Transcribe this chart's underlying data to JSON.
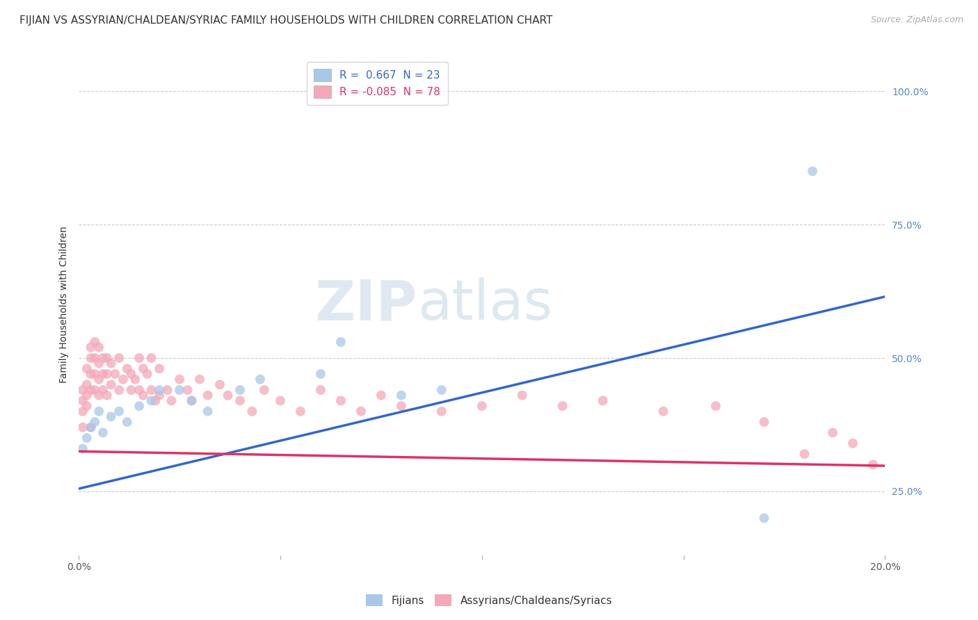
{
  "title": "FIJIAN VS ASSYRIAN/CHALDEAN/SYRIAC FAMILY HOUSEHOLDS WITH CHILDREN CORRELATION CHART",
  "source": "Source: ZipAtlas.com",
  "ylabel": "Family Households with Children",
  "y_ticks_right": [
    1.0,
    0.75,
    0.5,
    0.25
  ],
  "y_tick_labels_right": [
    "100.0%",
    "75.0%",
    "50.0%",
    "25.0%"
  ],
  "xlim": [
    0.0,
    0.2
  ],
  "ylim": [
    0.13,
    1.07
  ],
  "fijian_R": 0.667,
  "fijian_N": 23,
  "assyrian_R": -0.085,
  "assyrian_N": 78,
  "fijian_color": "#a8c8e8",
  "assyrian_color": "#f4a8b8",
  "fijian_line_color": "#3366cc",
  "assyrian_line_color": "#dd3366",
  "legend_label_fijian": "Fijians",
  "legend_label_assyrian": "Assyrians/Chaldeans/Syriacs",
  "watermark_zip": "ZIP",
  "watermark_atlas": "atlas",
  "background_color": "#ffffff",
  "grid_color": "#cccccc",
  "fijian_x": [
    0.001,
    0.002,
    0.003,
    0.004,
    0.005,
    0.006,
    0.008,
    0.01,
    0.012,
    0.015,
    0.018,
    0.02,
    0.025,
    0.028,
    0.032,
    0.04,
    0.045,
    0.06,
    0.065,
    0.08,
    0.09,
    0.17,
    0.182
  ],
  "fijian_y": [
    0.33,
    0.35,
    0.37,
    0.38,
    0.4,
    0.36,
    0.39,
    0.4,
    0.38,
    0.41,
    0.42,
    0.44,
    0.44,
    0.42,
    0.4,
    0.44,
    0.46,
    0.47,
    0.53,
    0.43,
    0.44,
    0.2,
    0.85
  ],
  "assyrian_x": [
    0.001,
    0.001,
    0.001,
    0.001,
    0.002,
    0.002,
    0.002,
    0.002,
    0.003,
    0.003,
    0.003,
    0.003,
    0.003,
    0.004,
    0.004,
    0.004,
    0.004,
    0.005,
    0.005,
    0.005,
    0.005,
    0.006,
    0.006,
    0.006,
    0.007,
    0.007,
    0.007,
    0.008,
    0.008,
    0.009,
    0.01,
    0.01,
    0.011,
    0.012,
    0.013,
    0.013,
    0.014,
    0.015,
    0.015,
    0.016,
    0.016,
    0.017,
    0.018,
    0.018,
    0.019,
    0.02,
    0.02,
    0.022,
    0.023,
    0.025,
    0.027,
    0.028,
    0.03,
    0.032,
    0.035,
    0.037,
    0.04,
    0.043,
    0.046,
    0.05,
    0.055,
    0.06,
    0.065,
    0.07,
    0.075,
    0.08,
    0.09,
    0.1,
    0.11,
    0.12,
    0.13,
    0.145,
    0.158,
    0.17,
    0.18,
    0.187,
    0.192,
    0.197
  ],
  "assyrian_y": [
    0.44,
    0.42,
    0.4,
    0.37,
    0.48,
    0.45,
    0.43,
    0.41,
    0.52,
    0.5,
    0.47,
    0.44,
    0.37,
    0.53,
    0.5,
    0.47,
    0.44,
    0.52,
    0.49,
    0.46,
    0.43,
    0.5,
    0.47,
    0.44,
    0.5,
    0.47,
    0.43,
    0.49,
    0.45,
    0.47,
    0.5,
    0.44,
    0.46,
    0.48,
    0.47,
    0.44,
    0.46,
    0.5,
    0.44,
    0.48,
    0.43,
    0.47,
    0.5,
    0.44,
    0.42,
    0.48,
    0.43,
    0.44,
    0.42,
    0.46,
    0.44,
    0.42,
    0.46,
    0.43,
    0.45,
    0.43,
    0.42,
    0.4,
    0.44,
    0.42,
    0.4,
    0.44,
    0.42,
    0.4,
    0.43,
    0.41,
    0.4,
    0.41,
    0.43,
    0.41,
    0.42,
    0.4,
    0.41,
    0.38,
    0.32,
    0.36,
    0.34,
    0.3
  ],
  "title_fontsize": 11,
  "label_fontsize": 10,
  "tick_fontsize": 10,
  "fijian_line_y0": 0.255,
  "fijian_line_y1": 0.615,
  "assyrian_line_y0": 0.325,
  "assyrian_line_y1": 0.298
}
